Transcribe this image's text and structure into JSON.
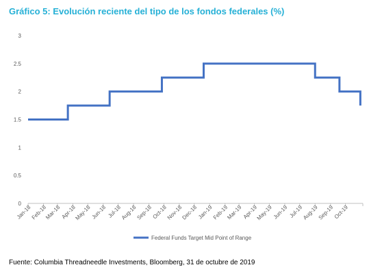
{
  "title": "Gráfico 5: Evolución reciente del tipo de los fondos federales (%)",
  "footer": "Fuente: Columbia Threadneedle Investments, Bloomberg, 31 de octubre de 2019",
  "chart_data": {
    "type": "line",
    "title": "Gráfico 5: Evolución reciente del tipo de los fondos federales (%)",
    "xlabel": "",
    "ylabel": "",
    "ylim": [
      0,
      3
    ],
    "yticks": [
      0,
      0.5,
      1,
      1.5,
      2,
      2.5,
      3
    ],
    "ytick_labels": [
      "0",
      "0.5",
      "1",
      "1.5",
      "2",
      "2.5",
      "3"
    ],
    "xlim": [
      "2018-01-01",
      "2019-11-05"
    ],
    "xtick_labels": [
      "Jan-18",
      "Feb-18",
      "Mar-18",
      "Apr-18",
      "May-18",
      "Jun-18",
      "Jul-18",
      "Aug-18",
      "Sep-18",
      "Oct-18",
      "Nov-18",
      "Dec-18",
      "Jan-19",
      "Feb-19",
      "Mar-19",
      "Apr-19",
      "May-19",
      "Jun-19",
      "Jul-19",
      "Aug-19",
      "Sep-19",
      "Oct-19"
    ],
    "grid": false,
    "legend_position": "bottom",
    "series": [
      {
        "name": "Federal Funds Target Mid Point of Range",
        "color": "#4472c4",
        "step": true,
        "x": [
          "2018-01-01",
          "2018-03-22",
          "2018-06-14",
          "2018-09-27",
          "2018-12-20",
          "2019-08-01",
          "2019-09-19",
          "2019-10-31"
        ],
        "y": [
          1.5,
          1.75,
          2.0,
          2.25,
          2.5,
          2.25,
          2.0,
          1.75
        ]
      }
    ]
  }
}
